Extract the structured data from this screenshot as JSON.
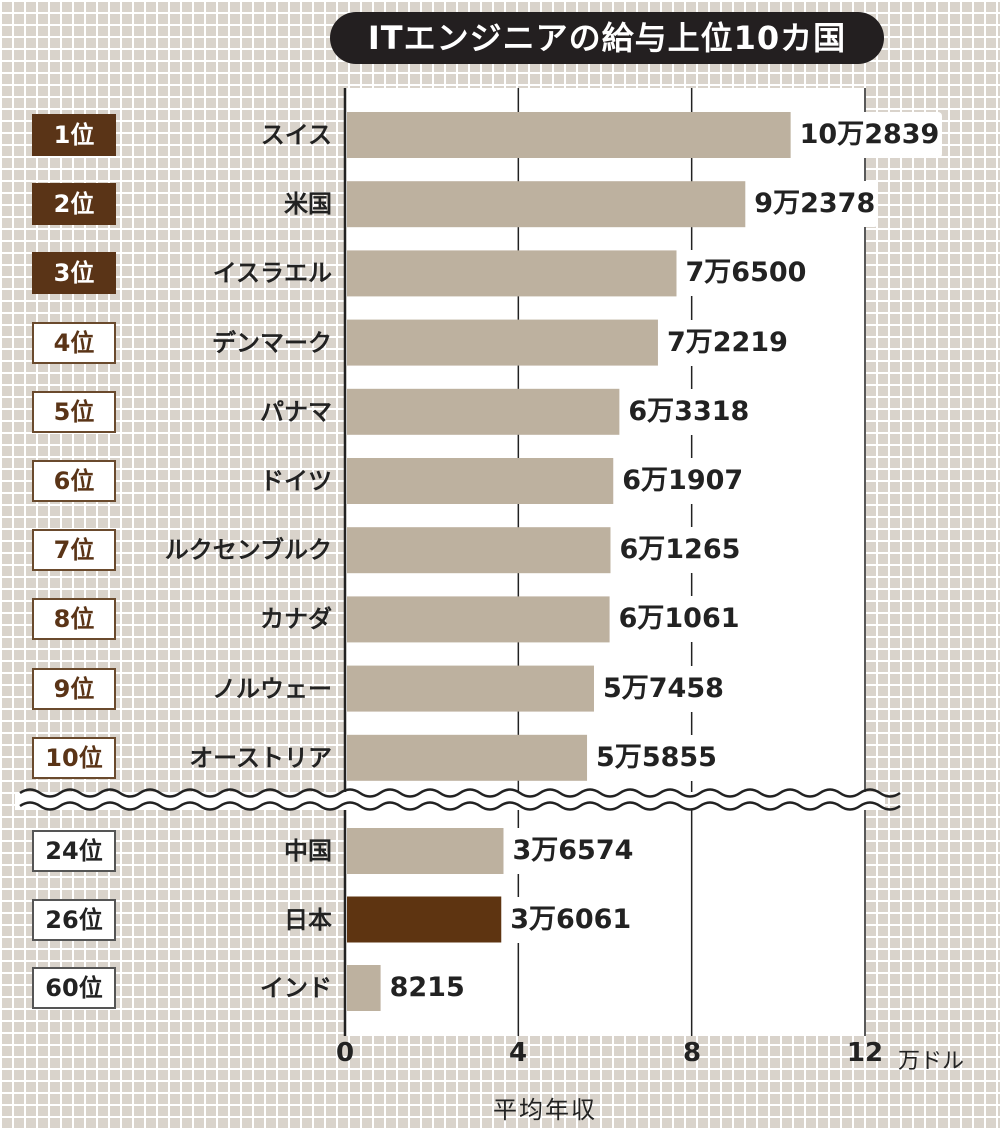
{
  "title": "ITエンジニアの給与上位10カ国",
  "unit": "万ドル",
  "colors": {
    "bar": "#bdb19f",
    "highlight": "#5e3411",
    "badge_top": "#5a3417",
    "title_bg": "#231f20"
  },
  "chart_data": {
    "type": "bar",
    "orientation": "horizontal",
    "title": "ITエンジニアの給与上位10カ国",
    "xlabel": "平均年収",
    "xunit": "万ドル",
    "xlim": [
      0,
      12
    ],
    "xticks": [
      "0",
      "4",
      "8",
      "12"
    ],
    "axis_break_after_index": 9,
    "categories": [
      "スイス",
      "米国",
      "イスラエル",
      "デンマーク",
      "パナマ",
      "ドイツ",
      "ルクセンブルク",
      "カナダ",
      "ノルウェー",
      "オーストリア",
      "中国",
      "日本",
      "インド"
    ],
    "ranks": [
      "1位",
      "2位",
      "3位",
      "4位",
      "5位",
      "6位",
      "7位",
      "8位",
      "9位",
      "10位",
      "24位",
      "26位",
      "60位"
    ],
    "values": [
      102839,
      92378,
      76500,
      72219,
      63318,
      61907,
      61265,
      61061,
      57458,
      55855,
      36574,
      36061,
      8215
    ],
    "value_labels": [
      "10万2839",
      "9万2378",
      "7万6500",
      "7万2219",
      "6万3318",
      "6万1907",
      "6万1265",
      "6万1061",
      "5万7458",
      "5万5855",
      "3万6574",
      "3万6061",
      "8215"
    ],
    "highlight": "日本"
  }
}
